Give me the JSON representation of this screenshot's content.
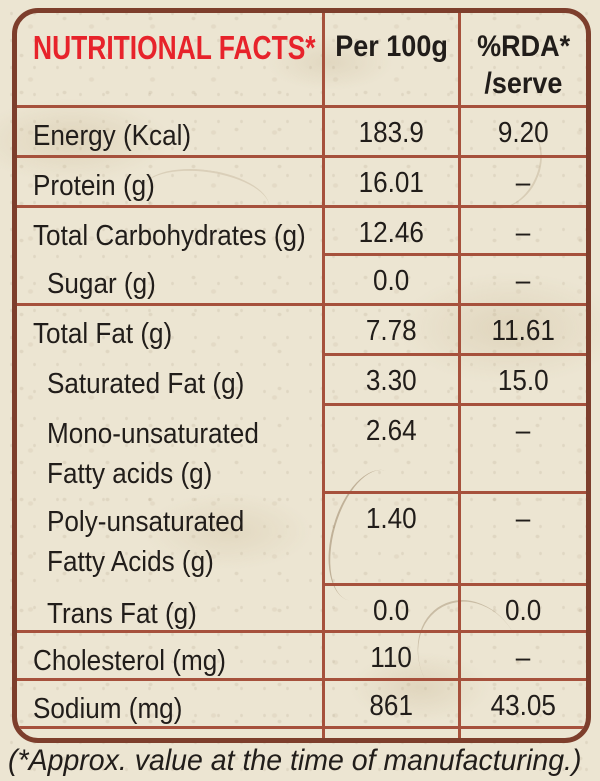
{
  "title": "NUTRITIONAL FACTS*",
  "columns": {
    "per100g": "Per 100g",
    "rda_line1": "%RDA*",
    "rda_line2": "/serve"
  },
  "rows": [
    {
      "label": "Energy (Kcal)",
      "per100g": "183.9",
      "rda": "9.20"
    },
    {
      "label": "Protein (g)",
      "per100g": "16.01",
      "rda": "–"
    },
    {
      "label": "Total Carbohydrates (g)",
      "per100g": "12.46",
      "rda": "–"
    },
    {
      "label": "Sugar (g)",
      "per100g": "0.0",
      "rda": "–"
    },
    {
      "label": "Total Fat (g)",
      "per100g": "7.78",
      "rda": "11.61"
    },
    {
      "label": "Saturated Fat (g)",
      "per100g": "3.30",
      "rda": "15.0"
    },
    {
      "label": "Mono-unsaturated",
      "label2": "Fatty acids (g)",
      "per100g": "2.64",
      "rda": "–"
    },
    {
      "label": "Poly-unsaturated",
      "label2": "Fatty Acids (g)",
      "per100g": "1.40",
      "rda": "–"
    },
    {
      "label": "Trans Fat (g)",
      "per100g": "0.0",
      "rda": "0.0"
    },
    {
      "label": "Cholesterol (mg)",
      "per100g": "110",
      "rda": "–"
    },
    {
      "label": "Sodium (mg)",
      "per100g": "861",
      "rda": "43.05"
    }
  ],
  "footnote": "(*Approx. value at the time of manufacturing.)",
  "colors": {
    "title_red": "#e7232b",
    "body_text": "#211d1a",
    "outer_border": "#7d3e2c",
    "grid_line": "#a6513c",
    "paper": "#ece5d2"
  }
}
